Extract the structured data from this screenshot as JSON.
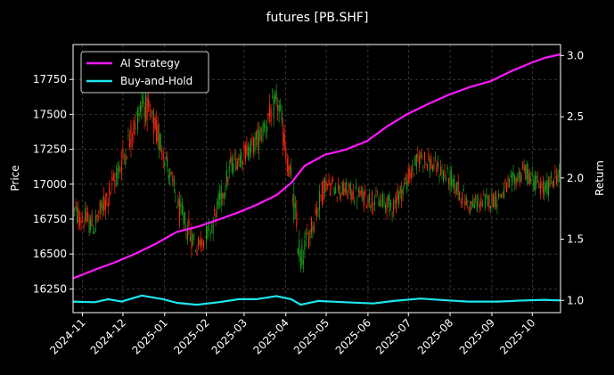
{
  "chart_data": {
    "type": "line",
    "title": "futures [PB.SHF]",
    "ylabel_left": "Price",
    "ylabel_right": "Return",
    "xlabel": "",
    "background": "#000000",
    "grid": true,
    "legend_position": "top-left",
    "ylim_left": [
      16080,
      18000
    ],
    "ylim_right": [
      0.9,
      3.09
    ],
    "xlim": [
      "2024-10-25",
      "2025-10-22"
    ],
    "x_ticks": [
      "2024-11",
      "2024-12",
      "2025-01",
      "2025-02",
      "2025-03",
      "2025-04",
      "2025-05",
      "2025-06",
      "2025-07",
      "2025-08",
      "2025-09",
      "2025-10"
    ],
    "y_ticks_left": [
      "16250",
      "16500",
      "16750",
      "17000",
      "17250",
      "17500",
      "17750"
    ],
    "y_ticks_right": [
      "1.0",
      "1.5",
      "2.0",
      "2.5",
      "3.0"
    ],
    "candles": {
      "up_color": "#ff2a12",
      "down_color": "#1e9e1e",
      "segments": [
        {
          "start": "2024-10-25",
          "end": "2024-11-10",
          "from": 16800,
          "to": 16700,
          "vol": 110
        },
        {
          "start": "2024-11-10",
          "end": "2024-11-26",
          "from": 16700,
          "to": 17050,
          "vol": 120
        },
        {
          "start": "2024-11-26",
          "end": "2024-12-16",
          "from": 17050,
          "to": 17600,
          "vol": 130
        },
        {
          "start": "2024-12-16",
          "end": "2024-12-31",
          "from": 17600,
          "to": 17250,
          "vol": 140
        },
        {
          "start": "2024-12-31",
          "end": "2025-01-12",
          "from": 17250,
          "to": 16800,
          "vol": 110
        },
        {
          "start": "2025-01-12",
          "end": "2025-01-25",
          "from": 16800,
          "to": 16550,
          "vol": 120
        },
        {
          "start": "2025-01-25",
          "end": "2025-02-05",
          "from": 16550,
          "to": 16700,
          "vol": 90
        },
        {
          "start": "2025-02-05",
          "end": "2025-02-20",
          "from": 16700,
          "to": 17150,
          "vol": 110
        },
        {
          "start": "2025-02-20",
          "end": "2025-03-10",
          "from": 17150,
          "to": 17300,
          "vol": 100
        },
        {
          "start": "2025-03-10",
          "end": "2025-03-26",
          "from": 17300,
          "to": 17600,
          "vol": 120
        },
        {
          "start": "2025-03-26",
          "end": "2025-04-05",
          "from": 17600,
          "to": 17000,
          "vol": 140
        },
        {
          "start": "2025-04-05",
          "end": "2025-04-12",
          "from": 17000,
          "to": 16450,
          "vol": 160
        },
        {
          "start": "2025-04-12",
          "end": "2025-04-30",
          "from": 16450,
          "to": 17000,
          "vol": 120
        },
        {
          "start": "2025-04-30",
          "end": "2025-05-31",
          "from": 17000,
          "to": 16900,
          "vol": 90
        },
        {
          "start": "2025-05-31",
          "end": "2025-06-20",
          "from": 16900,
          "to": 16850,
          "vol": 90
        },
        {
          "start": "2025-06-20",
          "end": "2025-07-10",
          "from": 16850,
          "to": 17200,
          "vol": 100
        },
        {
          "start": "2025-07-10",
          "end": "2025-07-31",
          "from": 17200,
          "to": 17050,
          "vol": 90
        },
        {
          "start": "2025-07-31",
          "end": "2025-08-15",
          "from": 17050,
          "to": 16850,
          "vol": 90
        },
        {
          "start": "2025-08-15",
          "end": "2025-09-05",
          "from": 16850,
          "to": 16900,
          "vol": 80
        },
        {
          "start": "2025-09-05",
          "end": "2025-09-25",
          "from": 16900,
          "to": 17100,
          "vol": 90
        },
        {
          "start": "2025-09-25",
          "end": "2025-10-10",
          "from": 17100,
          "to": 16950,
          "vol": 90
        },
        {
          "start": "2025-10-10",
          "end": "2025-10-22",
          "from": 16950,
          "to": 17100,
          "vol": 90
        }
      ]
    },
    "series": [
      {
        "name": "AI Strategy",
        "color": "#ff19ff",
        "axis": "right",
        "points": [
          [
            "2024-10-25",
            1.18
          ],
          [
            "2024-11-10",
            1.25
          ],
          [
            "2024-11-25",
            1.31
          ],
          [
            "2024-12-10",
            1.38
          ],
          [
            "2024-12-25",
            1.46
          ],
          [
            "2025-01-10",
            1.56
          ],
          [
            "2025-01-25",
            1.6
          ],
          [
            "2025-02-10",
            1.66
          ],
          [
            "2025-02-25",
            1.72
          ],
          [
            "2025-03-10",
            1.78
          ],
          [
            "2025-03-25",
            1.86
          ],
          [
            "2025-04-05",
            1.96
          ],
          [
            "2025-04-15",
            2.1
          ],
          [
            "2025-04-30",
            2.19
          ],
          [
            "2025-05-15",
            2.23
          ],
          [
            "2025-05-31",
            2.3
          ],
          [
            "2025-06-15",
            2.42
          ],
          [
            "2025-06-30",
            2.52
          ],
          [
            "2025-07-15",
            2.6
          ],
          [
            "2025-07-31",
            2.68
          ],
          [
            "2025-08-15",
            2.74
          ],
          [
            "2025-08-31",
            2.79
          ],
          [
            "2025-09-15",
            2.87
          ],
          [
            "2025-09-30",
            2.94
          ],
          [
            "2025-10-10",
            2.98
          ],
          [
            "2025-10-22",
            3.01
          ]
        ]
      },
      {
        "name": "Buy-and-Hold",
        "color": "#1ee6f0",
        "axis": "right",
        "points": [
          [
            "2024-10-25",
            0.99
          ],
          [
            "2024-11-10",
            0.985
          ],
          [
            "2024-11-20",
            1.01
          ],
          [
            "2024-11-30",
            0.99
          ],
          [
            "2024-12-15",
            1.04
          ],
          [
            "2024-12-31",
            1.01
          ],
          [
            "2025-01-10",
            0.98
          ],
          [
            "2025-01-25",
            0.965
          ],
          [
            "2025-02-10",
            0.985
          ],
          [
            "2025-02-25",
            1.01
          ],
          [
            "2025-03-10",
            1.01
          ],
          [
            "2025-03-25",
            1.035
          ],
          [
            "2025-04-05",
            1.01
          ],
          [
            "2025-04-12",
            0.965
          ],
          [
            "2025-04-25",
            0.995
          ],
          [
            "2025-05-15",
            0.985
          ],
          [
            "2025-06-05",
            0.975
          ],
          [
            "2025-06-20",
            0.995
          ],
          [
            "2025-07-10",
            1.015
          ],
          [
            "2025-07-31",
            1.0
          ],
          [
            "2025-08-15",
            0.99
          ],
          [
            "2025-09-05",
            0.99
          ],
          [
            "2025-09-25",
            1.0
          ],
          [
            "2025-10-10",
            1.005
          ],
          [
            "2025-10-22",
            1.0
          ]
        ]
      }
    ]
  }
}
